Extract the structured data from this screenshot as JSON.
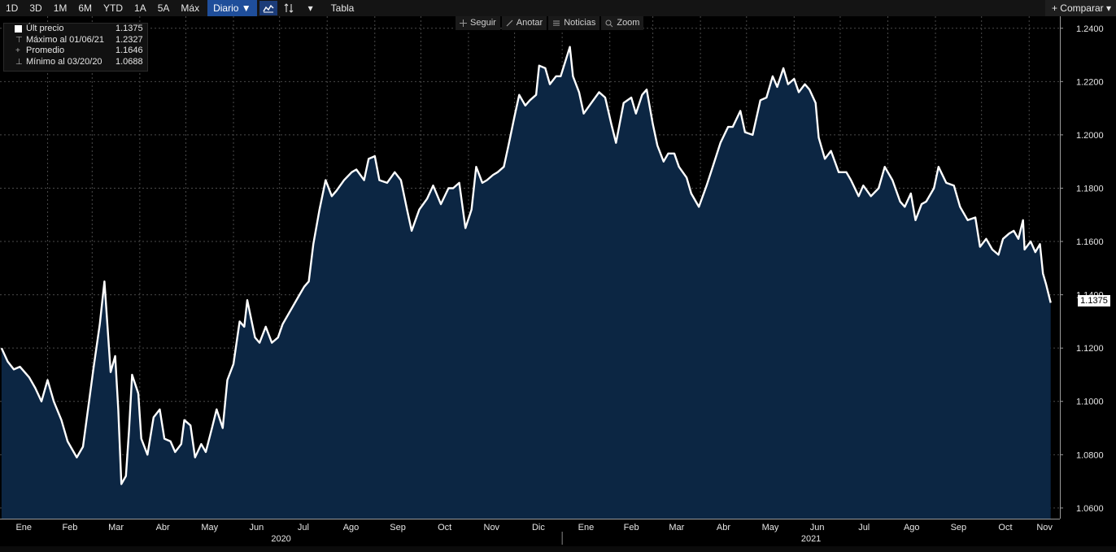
{
  "toolbar": {
    "ranges": [
      "1D",
      "3D",
      "1M",
      "6M",
      "YTD",
      "1A",
      "5A",
      "Máx"
    ],
    "period": "Diario ▼",
    "dropdown": "▾",
    "table": "Tabla",
    "compare": "+ Comparar ▾"
  },
  "subtools": {
    "follow": "Seguir",
    "annotate": "Anotar",
    "news": "Noticias",
    "zoom": "Zoom"
  },
  "legend": {
    "last_label": "Últ precio",
    "last_value": "1.1375",
    "max_label": "Máximo al 01/06/21",
    "max_value": "1.2327",
    "avg_label": "Promedio",
    "avg_value": "1.1646",
    "min_label": "Mínimo al 03/20/20",
    "min_value": "1.0688"
  },
  "last_price_tag": "1.1375",
  "colors": {
    "background": "#000000",
    "area_fill": "#0c2643",
    "line": "#ffffff",
    "grid": "#4a4a4a",
    "toolbar_accent": "#1f4e9a"
  },
  "chart_data": {
    "type": "area",
    "y_ticks": [
      "1.2400",
      "1.2200",
      "1.2000",
      "1.1800",
      "1.1600",
      "1.1400",
      "1.1200",
      "1.1000",
      "1.0800",
      "1.0600"
    ],
    "ylim": [
      1.056,
      1.2445
    ],
    "y_scale": "linear",
    "grid": "dotted",
    "legend": "top-left",
    "x_months": [
      {
        "label": "Ene",
        "year": 2020
      },
      {
        "label": "Feb",
        "year": 2020
      },
      {
        "label": "Mar",
        "year": 2020
      },
      {
        "label": "Abr",
        "year": 2020
      },
      {
        "label": "May",
        "year": 2020
      },
      {
        "label": "Jun",
        "year": 2020
      },
      {
        "label": "Jul",
        "year": 2020
      },
      {
        "label": "Ago",
        "year": 2020
      },
      {
        "label": "Sep",
        "year": 2020
      },
      {
        "label": "Oct",
        "year": 2020
      },
      {
        "label": "Nov",
        "year": 2020
      },
      {
        "label": "Dic",
        "year": 2020
      },
      {
        "label": "Ene",
        "year": 2021
      },
      {
        "label": "Feb",
        "year": 2021
      },
      {
        "label": "Mar",
        "year": 2021
      },
      {
        "label": "Abr",
        "year": 2021
      },
      {
        "label": "May",
        "year": 2021
      },
      {
        "label": "Jun",
        "year": 2021
      },
      {
        "label": "Jul",
        "year": 2021
      },
      {
        "label": "Ago",
        "year": 2021
      },
      {
        "label": "Sep",
        "year": 2021
      },
      {
        "label": "Oct",
        "year": 2021
      },
      {
        "label": "Nov",
        "year": 2021
      }
    ],
    "year_labels": [
      "2020",
      "2021"
    ],
    "series": [
      {
        "values": [
          [
            "2020-01-02",
            1.12
          ],
          [
            "2020-01-06",
            1.115
          ],
          [
            "2020-01-10",
            1.112
          ],
          [
            "2020-01-14",
            1.113
          ],
          [
            "2020-01-20",
            1.109
          ],
          [
            "2020-01-24",
            1.105
          ],
          [
            "2020-01-28",
            1.1
          ],
          [
            "2020-02-01",
            1.108
          ],
          [
            "2020-02-05",
            1.1
          ],
          [
            "2020-02-10",
            1.093
          ],
          [
            "2020-02-14",
            1.085
          ],
          [
            "2020-02-18",
            1.081
          ],
          [
            "2020-02-20",
            1.079
          ],
          [
            "2020-02-24",
            1.083
          ],
          [
            "2020-02-28",
            1.1
          ],
          [
            "2020-03-02",
            1.113
          ],
          [
            "2020-03-06",
            1.129
          ],
          [
            "2020-03-09",
            1.145
          ],
          [
            "2020-03-11",
            1.128
          ],
          [
            "2020-03-13",
            1.111
          ],
          [
            "2020-03-16",
            1.117
          ],
          [
            "2020-03-18",
            1.097
          ],
          [
            "2020-03-20",
            1.069
          ],
          [
            "2020-03-23",
            1.072
          ],
          [
            "2020-03-25",
            1.089
          ],
          [
            "2020-03-27",
            1.11
          ],
          [
            "2020-03-31",
            1.103
          ],
          [
            "2020-04-02",
            1.086
          ],
          [
            "2020-04-06",
            1.08
          ],
          [
            "2020-04-10",
            1.094
          ],
          [
            "2020-04-14",
            1.097
          ],
          [
            "2020-04-17",
            1.086
          ],
          [
            "2020-04-21",
            1.085
          ],
          [
            "2020-04-24",
            1.081
          ],
          [
            "2020-04-28",
            1.084
          ],
          [
            "2020-04-30",
            1.093
          ],
          [
            "2020-05-04",
            1.091
          ],
          [
            "2020-05-07",
            1.079
          ],
          [
            "2020-05-11",
            1.084
          ],
          [
            "2020-05-14",
            1.081
          ],
          [
            "2020-05-18",
            1.09
          ],
          [
            "2020-05-21",
            1.097
          ],
          [
            "2020-05-25",
            1.09
          ],
          [
            "2020-05-28",
            1.108
          ],
          [
            "2020-06-01",
            1.114
          ],
          [
            "2020-06-05",
            1.13
          ],
          [
            "2020-06-08",
            1.128
          ],
          [
            "2020-06-10",
            1.138
          ],
          [
            "2020-06-15",
            1.124
          ],
          [
            "2020-06-18",
            1.122
          ],
          [
            "2020-06-22",
            1.128
          ],
          [
            "2020-06-26",
            1.122
          ],
          [
            "2020-06-30",
            1.124
          ],
          [
            "2020-07-03",
            1.129
          ],
          [
            "2020-07-08",
            1.134
          ],
          [
            "2020-07-14",
            1.14
          ],
          [
            "2020-07-17",
            1.143
          ],
          [
            "2020-07-20",
            1.145
          ],
          [
            "2020-07-23",
            1.159
          ],
          [
            "2020-07-27",
            1.172
          ],
          [
            "2020-07-31",
            1.183
          ],
          [
            "2020-08-04",
            1.177
          ],
          [
            "2020-08-07",
            1.179
          ],
          [
            "2020-08-12",
            1.183
          ],
          [
            "2020-08-17",
            1.186
          ],
          [
            "2020-08-20",
            1.187
          ],
          [
            "2020-08-25",
            1.183
          ],
          [
            "2020-08-28",
            1.191
          ],
          [
            "2020-09-01",
            1.192
          ],
          [
            "2020-09-04",
            1.183
          ],
          [
            "2020-09-09",
            1.182
          ],
          [
            "2020-09-14",
            1.186
          ],
          [
            "2020-09-18",
            1.183
          ],
          [
            "2020-09-22",
            1.172
          ],
          [
            "2020-09-25",
            1.164
          ],
          [
            "2020-09-30",
            1.172
          ],
          [
            "2020-10-05",
            1.176
          ],
          [
            "2020-10-09",
            1.181
          ],
          [
            "2020-10-14",
            1.174
          ],
          [
            "2020-10-19",
            1.18
          ],
          [
            "2020-10-22",
            1.18
          ],
          [
            "2020-10-26",
            1.182
          ],
          [
            "2020-10-30",
            1.165
          ],
          [
            "2020-11-03",
            1.172
          ],
          [
            "2020-11-06",
            1.188
          ],
          [
            "2020-11-10",
            1.182
          ],
          [
            "2020-11-13",
            1.183
          ],
          [
            "2020-11-17",
            1.185
          ],
          [
            "2020-11-20",
            1.186
          ],
          [
            "2020-11-24",
            1.188
          ],
          [
            "2020-11-27",
            1.196
          ],
          [
            "2020-12-01",
            1.207
          ],
          [
            "2020-12-04",
            1.215
          ],
          [
            "2020-12-08",
            1.211
          ],
          [
            "2020-12-11",
            1.213
          ],
          [
            "2020-12-15",
            1.215
          ],
          [
            "2020-12-17",
            1.226
          ],
          [
            "2020-12-21",
            1.225
          ],
          [
            "2020-12-24",
            1.219
          ],
          [
            "2020-12-28",
            1.222
          ],
          [
            "2020-12-31",
            1.222
          ],
          [
            "2021-01-06",
            1.233
          ],
          [
            "2021-01-08",
            1.222
          ],
          [
            "2021-01-12",
            1.216
          ],
          [
            "2021-01-15",
            1.208
          ],
          [
            "2021-01-20",
            1.212
          ],
          [
            "2021-01-25",
            1.216
          ],
          [
            "2021-01-29",
            1.214
          ],
          [
            "2021-02-02",
            1.204
          ],
          [
            "2021-02-05",
            1.197
          ],
          [
            "2021-02-10",
            1.212
          ],
          [
            "2021-02-15",
            1.214
          ],
          [
            "2021-02-18",
            1.208
          ],
          [
            "2021-02-22",
            1.215
          ],
          [
            "2021-02-25",
            1.217
          ],
          [
            "2021-03-01",
            1.204
          ],
          [
            "2021-03-04",
            1.196
          ],
          [
            "2021-03-08",
            1.19
          ],
          [
            "2021-03-11",
            1.193
          ],
          [
            "2021-03-15",
            1.193
          ],
          [
            "2021-03-18",
            1.188
          ],
          [
            "2021-03-23",
            1.184
          ],
          [
            "2021-03-26",
            1.178
          ],
          [
            "2021-03-31",
            1.173
          ],
          [
            "2021-04-05",
            1.181
          ],
          [
            "2021-04-09",
            1.188
          ],
          [
            "2021-04-14",
            1.197
          ],
          [
            "2021-04-19",
            1.203
          ],
          [
            "2021-04-22",
            1.203
          ],
          [
            "2021-04-27",
            1.209
          ],
          [
            "2021-04-30",
            1.201
          ],
          [
            "2021-05-05",
            1.2
          ],
          [
            "2021-05-10",
            1.213
          ],
          [
            "2021-05-14",
            1.214
          ],
          [
            "2021-05-18",
            1.222
          ],
          [
            "2021-05-21",
            1.218
          ],
          [
            "2021-05-25",
            1.225
          ],
          [
            "2021-05-28",
            1.219
          ],
          [
            "2021-06-01",
            1.221
          ],
          [
            "2021-06-04",
            1.216
          ],
          [
            "2021-06-08",
            1.219
          ],
          [
            "2021-06-11",
            1.217
          ],
          [
            "2021-06-15",
            1.212
          ],
          [
            "2021-06-17",
            1.199
          ],
          [
            "2021-06-21",
            1.191
          ],
          [
            "2021-06-25",
            1.194
          ],
          [
            "2021-06-30",
            1.186
          ],
          [
            "2021-07-05",
            1.186
          ],
          [
            "2021-07-08",
            1.183
          ],
          [
            "2021-07-13",
            1.177
          ],
          [
            "2021-07-16",
            1.181
          ],
          [
            "2021-07-21",
            1.177
          ],
          [
            "2021-07-26",
            1.18
          ],
          [
            "2021-07-30",
            1.188
          ],
          [
            "2021-08-04",
            1.183
          ],
          [
            "2021-08-09",
            1.175
          ],
          [
            "2021-08-12",
            1.173
          ],
          [
            "2021-08-16",
            1.178
          ],
          [
            "2021-08-19",
            1.168
          ],
          [
            "2021-08-23",
            1.174
          ],
          [
            "2021-08-26",
            1.175
          ],
          [
            "2021-08-31",
            1.18
          ],
          [
            "2021-09-03",
            1.188
          ],
          [
            "2021-09-08",
            1.182
          ],
          [
            "2021-09-13",
            1.181
          ],
          [
            "2021-09-17",
            1.173
          ],
          [
            "2021-09-22",
            1.168
          ],
          [
            "2021-09-27",
            1.169
          ],
          [
            "2021-09-30",
            1.158
          ],
          [
            "2021-10-04",
            1.161
          ],
          [
            "2021-10-08",
            1.157
          ],
          [
            "2021-10-12",
            1.155
          ],
          [
            "2021-10-15",
            1.161
          ],
          [
            "2021-10-19",
            1.163
          ],
          [
            "2021-10-22",
            1.164
          ],
          [
            "2021-10-25",
            1.161
          ],
          [
            "2021-10-28",
            1.168
          ],
          [
            "2021-10-29",
            1.157
          ],
          [
            "2021-11-02",
            1.16
          ],
          [
            "2021-11-05",
            1.156
          ],
          [
            "2021-11-08",
            1.159
          ],
          [
            "2021-11-10",
            1.148
          ],
          [
            "2021-11-12",
            1.144
          ],
          [
            "2021-11-15",
            1.137
          ]
        ]
      }
    ]
  }
}
